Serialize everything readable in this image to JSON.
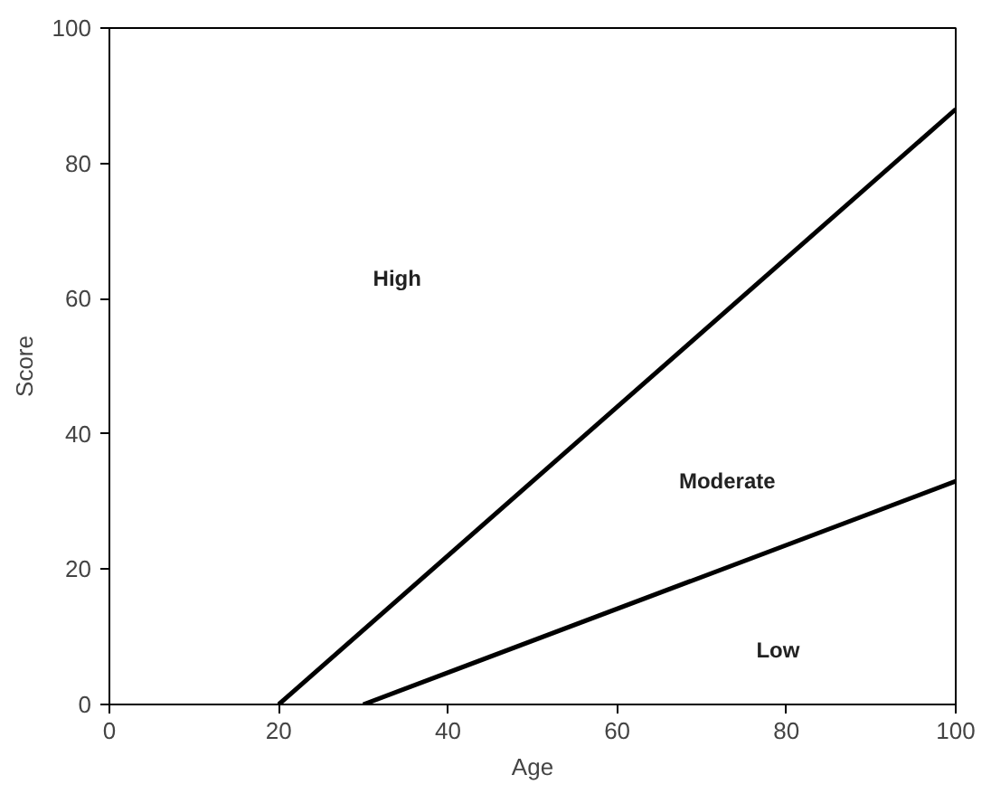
{
  "chart_data": {
    "type": "line",
    "xlabel": "Age",
    "ylabel": "Score",
    "xlim": [
      0,
      100
    ],
    "ylim": [
      0,
      100
    ],
    "xticks": [
      0,
      20,
      40,
      60,
      80,
      100
    ],
    "yticks": [
      0,
      20,
      40,
      60,
      80,
      100
    ],
    "grid": false,
    "series": [
      {
        "color": "#000000",
        "x": [
          20,
          100
        ],
        "values": [
          0,
          88
        ]
      },
      {
        "color": "#000000",
        "x": [
          30,
          100
        ],
        "values": [
          0,
          33
        ]
      }
    ],
    "annotations": [
      "High",
      "Moderate",
      "Low"
    ]
  }
}
